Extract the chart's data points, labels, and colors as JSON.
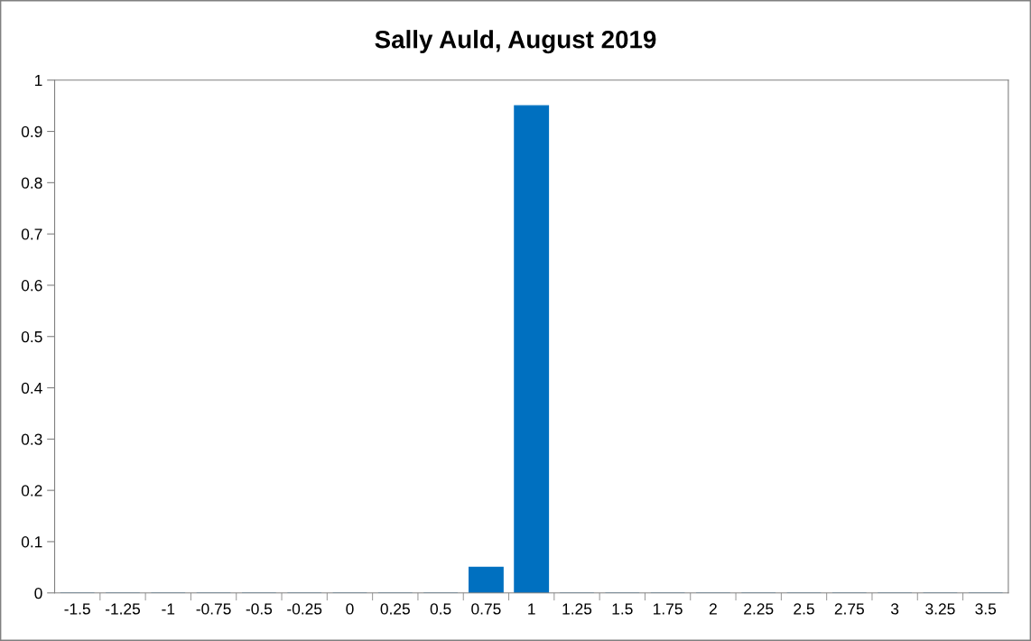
{
  "chart_data": {
    "type": "bar",
    "title": "Sally Auld, August 2019",
    "categories": [
      "-1.5",
      "-1.25",
      "-1",
      "-0.75",
      "-0.5",
      "-0.25",
      "0",
      "0.25",
      "0.5",
      "0.75",
      "1",
      "1.25",
      "1.5",
      "1.75",
      "2",
      "2.25",
      "2.5",
      "2.75",
      "3",
      "3.25",
      "3.5"
    ],
    "values": [
      0,
      0,
      0,
      0,
      0,
      0,
      0,
      0,
      0,
      0.05,
      0.95,
      0,
      0,
      0,
      0,
      0,
      0,
      0,
      0,
      0,
      0
    ],
    "color": "#0070c0",
    "ylim": [
      0,
      1
    ],
    "yticks": [
      0,
      0.1,
      0.2,
      0.3,
      0.4,
      0.5,
      0.6,
      0.7,
      0.8,
      0.9,
      1
    ],
    "grid": false,
    "legend": false
  }
}
